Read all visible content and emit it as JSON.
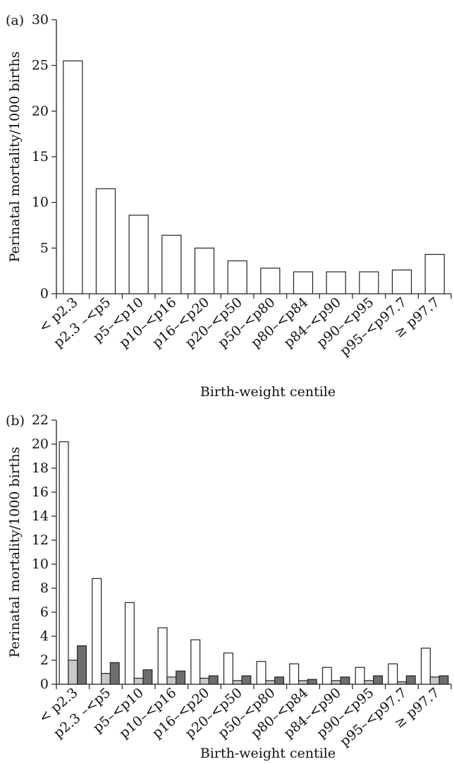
{
  "chart_data": [
    {
      "type": "bar",
      "panel_label": "(a)",
      "categories": [
        "< p2.3",
        "p2.3 –<p5",
        "p5–<p10",
        "p10–<p16",
        "p16–<p20",
        "p20–<p50",
        "p50–<p80",
        "p80–<p84",
        "p84–<p90",
        "p90–<p95",
        "p95–<p97.7",
        "≥ p97.7"
      ],
      "series": [
        {
          "values": [
            25.5,
            11.5,
            8.6,
            6.4,
            5.0,
            3.6,
            2.8,
            2.4,
            2.4,
            2.4,
            2.6,
            4.3
          ],
          "color": "#ffffff"
        }
      ],
      "xlabel": "Birth-weight centile",
      "ylabel": "Perinatal mortality/1000 births",
      "ylim": [
        0,
        30
      ],
      "yticks": [
        0,
        5,
        10,
        15,
        20,
        25,
        30
      ],
      "grid": false
    },
    {
      "type": "bar",
      "panel_label": "(b)",
      "categories": [
        "< p2.3",
        "p2.3 –<p5",
        "p5–<p10",
        "p10–<p16",
        "p16–<p20",
        "p20–<p50",
        "p50–<p80",
        "p80–<p84",
        "p84–<p90",
        "p90–<p95",
        "p95–<p97.7",
        "≥ p97.7"
      ],
      "series": [
        {
          "values": [
            20.2,
            8.8,
            6.8,
            4.7,
            3.7,
            2.6,
            1.9,
            1.7,
            1.4,
            1.4,
            1.7,
            3.0
          ],
          "color": "#ffffff"
        },
        {
          "values": [
            2.0,
            0.9,
            0.5,
            0.6,
            0.5,
            0.3,
            0.3,
            0.3,
            0.3,
            0.3,
            0.2,
            0.6
          ],
          "color": "#c8c8c8"
        },
        {
          "values": [
            3.2,
            1.8,
            1.2,
            1.1,
            0.7,
            0.7,
            0.6,
            0.4,
            0.6,
            0.7,
            0.7,
            0.7
          ],
          "color": "#6e6e6e"
        }
      ],
      "xlabel": "Birth-weight centile",
      "ylabel": "Perinatal mortality/1000 births",
      "ylim": [
        0,
        22
      ],
      "yticks": [
        0,
        2,
        4,
        6,
        8,
        10,
        12,
        14,
        16,
        18,
        20,
        22
      ],
      "grid": false
    }
  ]
}
